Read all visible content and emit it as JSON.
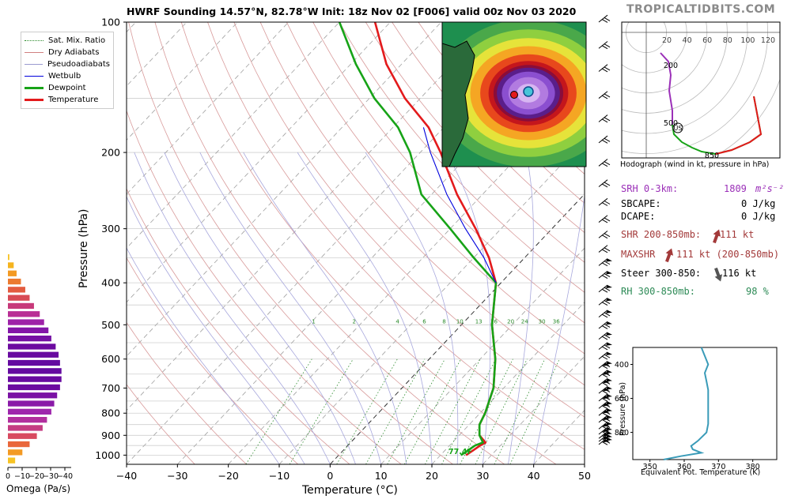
{
  "title": "HWRF Sounding 14.57°N, 82.78°W Init: 18z Nov 02 [F006] valid 00z Nov 03 2020",
  "brand": "TROPICALTIDBITS.COM",
  "legend": [
    {
      "label": "Sat. Mix. Ratio",
      "color": "#2a8a2a",
      "style": "dotted"
    },
    {
      "label": "Dry Adiabats",
      "color": "#d08080",
      "style": "solid"
    },
    {
      "label": "Pseudoadiabats",
      "color": "#9a9ad0",
      "style": "solid"
    },
    {
      "label": "Wetbulb",
      "color": "#0000dd",
      "style": "solid"
    },
    {
      "label": "Dewpoint",
      "color": "#17a317",
      "style": "solid"
    },
    {
      "label": "Temperature",
      "color": "#e31a1c",
      "style": "solid"
    }
  ],
  "chart_data": [
    {
      "type": "line",
      "name": "skew-t",
      "xlabel": "Temperature (°C)",
      "ylabel": "Pressure (hPa)",
      "x_ticks": [
        -40,
        -30,
        -20,
        -10,
        0,
        10,
        20,
        30,
        40,
        50
      ],
      "y_ticks": [
        100,
        200,
        300,
        400,
        500,
        600,
        700,
        800,
        900,
        1000
      ],
      "ylim": [
        100,
        1050
      ],
      "y_scale": "log",
      "mixing_ratio_labels": [
        "1",
        "2",
        "4",
        "6",
        "8",
        "10",
        "13",
        "16",
        "20",
        "24",
        "30",
        "36"
      ],
      "surface_label": "77.4F",
      "series": [
        {
          "name": "Temperature",
          "color": "#e31a1c",
          "points": [
            [
              100,
              -73
            ],
            [
              125,
              -63
            ],
            [
              150,
              -53
            ],
            [
              175,
              -43
            ],
            [
              200,
              -36
            ],
            [
              250,
              -25
            ],
            [
              300,
              -15
            ],
            [
              350,
              -7
            ],
            [
              400,
              -1
            ],
            [
              500,
              6
            ],
            [
              600,
              13
            ],
            [
              700,
              18
            ],
            [
              800,
              21
            ],
            [
              850,
              22
            ],
            [
              900,
              24
            ],
            [
              935,
              26.5
            ],
            [
              950,
              26
            ],
            [
              975,
              25.5
            ],
            [
              1000,
              25
            ]
          ]
        },
        {
          "name": "Dewpoint",
          "color": "#17a317",
          "points": [
            [
              100,
              -80
            ],
            [
              125,
              -69
            ],
            [
              150,
              -59
            ],
            [
              175,
              -49
            ],
            [
              200,
              -42
            ],
            [
              250,
              -32
            ],
            [
              300,
              -20
            ],
            [
              350,
              -10
            ],
            [
              400,
              -1
            ],
            [
              500,
              6
            ],
            [
              600,
              13
            ],
            [
              700,
              18
            ],
            [
              800,
              21
            ],
            [
              850,
              22
            ],
            [
              900,
              24
            ],
            [
              935,
              26
            ],
            [
              950,
              25
            ],
            [
              975,
              24.5
            ],
            [
              1000,
              24
            ]
          ]
        },
        {
          "name": "Wetbulb",
          "color": "#0000dd",
          "points": [
            [
              175,
              -44
            ],
            [
              200,
              -38
            ],
            [
              250,
              -27
            ],
            [
              300,
              -17
            ],
            [
              350,
              -8
            ],
            [
              400,
              -1
            ]
          ]
        }
      ]
    },
    {
      "type": "bar",
      "name": "omega",
      "xlabel": "Omega (Pa/s)",
      "x_ticks": [
        "0",
        "−10",
        "−20",
        "−30",
        "−40"
      ],
      "values": [
        1,
        4,
        6,
        9,
        12,
        15,
        18,
        22,
        25,
        28,
        30,
        33,
        35,
        36,
        37,
        37,
        36,
        34,
        32,
        30,
        27,
        24,
        20,
        15,
        10,
        5
      ]
    },
    {
      "type": "line",
      "name": "hodograph",
      "caption": "Hodograph (wind in kt, pressure in hPa)",
      "ring_labels": [
        "20",
        "40",
        "60",
        "80",
        "100",
        "120"
      ],
      "point_labels": [
        "200",
        "500",
        "850"
      ],
      "storm_motion_label": "US"
    },
    {
      "type": "line",
      "name": "theta-e",
      "xlabel": "Equivalent Pot. Temperature (K)",
      "ylabel": "Pressure (hPa)",
      "x_ticks": [
        350,
        360,
        370,
        380
      ],
      "y_ticks": [
        400,
        600,
        800
      ],
      "xlim": [
        345,
        387
      ],
      "ylim": [
        300,
        960
      ],
      "points": [
        [
          300,
          365
        ],
        [
          350,
          366
        ],
        [
          400,
          367
        ],
        [
          450,
          366
        ],
        [
          500,
          366.5
        ],
        [
          550,
          367
        ],
        [
          600,
          367
        ],
        [
          650,
          367
        ],
        [
          700,
          367
        ],
        [
          750,
          367
        ],
        [
          800,
          366.5
        ],
        [
          850,
          364
        ],
        [
          880,
          362
        ],
        [
          900,
          362.5
        ],
        [
          920,
          365
        ],
        [
          940,
          359
        ],
        [
          960,
          354
        ]
      ]
    }
  ],
  "indices": [
    {
      "label": "SRH 0-3km:",
      "value": "1809",
      "unit": "m²s⁻²",
      "color": "#9b30b8"
    },
    {
      "label": "SBCAPE:",
      "value": "0 J/kg",
      "unit": "",
      "color": "#000000"
    },
    {
      "label": "DCAPE:",
      "value": "0 J/kg",
      "unit": "",
      "color": "#000000"
    },
    {
      "label": "SHR 200-850mb:",
      "value": "111 kt",
      "unit": "",
      "color": "#a33a3a"
    },
    {
      "label": "MAXSHR",
      "value": "111 kt (200-850mb)",
      "unit": "",
      "color": "#a33a3a"
    },
    {
      "label": "Steer 300-850:",
      "value": "116 kt",
      "unit": "",
      "color": "#000000"
    },
    {
      "label": "RH 300-850mb:",
      "value": "98 %",
      "unit": "",
      "color": "#2e8b57"
    }
  ]
}
